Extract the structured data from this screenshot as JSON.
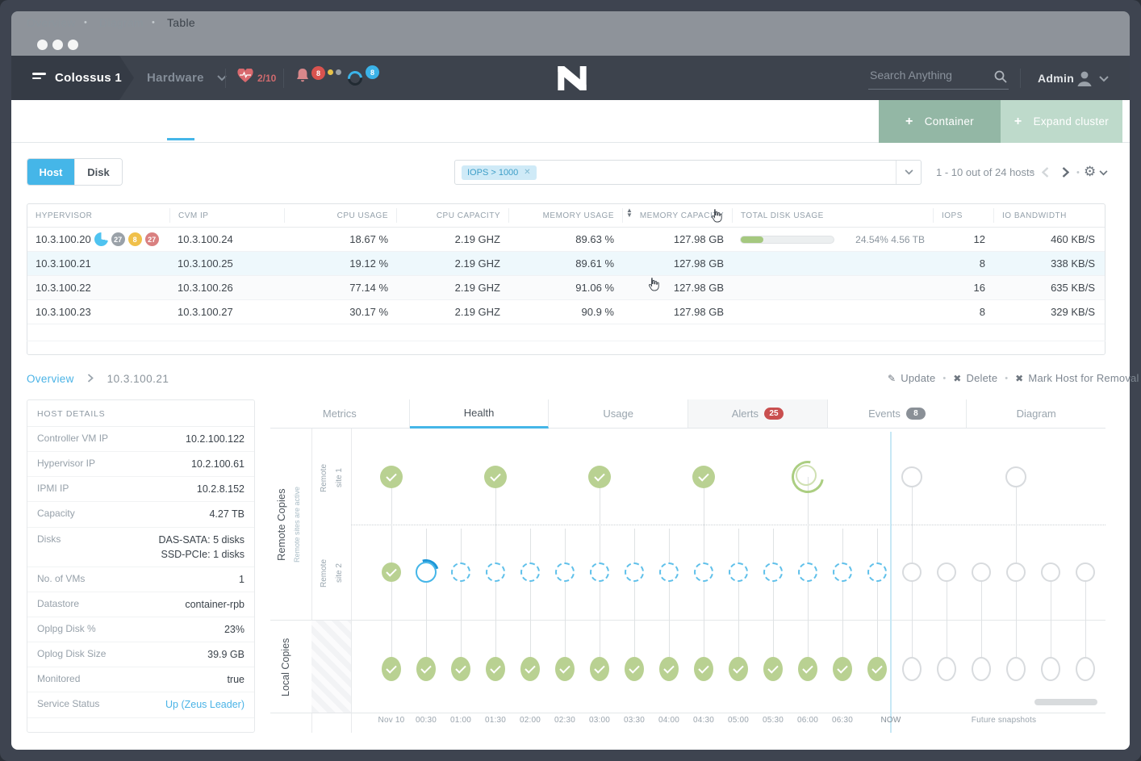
{
  "header": {
    "cluster_name": "Colossus 1",
    "nav_menu": "Hardware",
    "health_score": "2/10",
    "alerts_badge": "8",
    "tasks_badge": "8",
    "search_placeholder": "Search Anything",
    "user_name": "Admin"
  },
  "page_tabs": {
    "overview": "Overview",
    "diagram": "Diagram",
    "table": "Table"
  },
  "actions": {
    "container_label": "Container",
    "expand_cluster_label": "Expand cluster"
  },
  "toolbar": {
    "toggle_host": "Host",
    "toggle_disk": "Disk",
    "filter_chip": "IOPS > 1000",
    "pagination": "1 - 10 out of 24 hosts"
  },
  "table": {
    "columns": [
      "HYPERVISOR",
      "CVM IP",
      "CPU USAGE",
      "CPU CAPACITY",
      "MEMORY USAGE",
      "MEMORY CAPACITY",
      "TOTAL DISK USAGE",
      "IOPS",
      "IO BANDWIDTH"
    ],
    "rows": [
      {
        "hypervisor": "10.3.100.20",
        "badges": [
          {
            "type": "pie",
            "color": "#4fc3f0"
          },
          {
            "text": "27",
            "color": "#9aa1a8"
          },
          {
            "text": "8",
            "color": "#f0c04a"
          },
          {
            "text": "27",
            "color": "#d98080"
          }
        ],
        "cvm_ip": "10.3.100.24",
        "cpu_usage": "18.67 %",
        "cpu_capacity": "2.19 GHZ",
        "memory_usage": "89.63 %",
        "memory_capacity": "127.98 GB",
        "disk_usage_percent": 24.54,
        "disk_usage_label": "24.54% 4.56 TB",
        "iops": "12",
        "io_bandwidth": "460 KB/S",
        "state": null
      },
      {
        "hypervisor": "10.3.100.21",
        "badges": [],
        "cvm_ip": "10.3.100.25",
        "cpu_usage": "19.12 %",
        "cpu_capacity": "2.19 GHZ",
        "memory_usage": "89.61 %",
        "memory_capacity": "127.98 GB",
        "disk_usage_percent": null,
        "disk_usage_label": "",
        "iops": "8",
        "io_bandwidth": "338 KB/S",
        "state": "selected"
      },
      {
        "hypervisor": "10.3.100.22",
        "badges": [],
        "cvm_ip": "10.3.100.26",
        "cpu_usage": "77.14 %",
        "cpu_capacity": "2.19 GHZ",
        "memory_usage": "91.06 %",
        "memory_capacity": "127.98 GB",
        "disk_usage_percent": null,
        "disk_usage_label": "",
        "iops": "16",
        "io_bandwidth": "635 KB/S",
        "state": "shaded"
      },
      {
        "hypervisor": "10.3.100.23",
        "badges": [],
        "cvm_ip": "10.3.100.27",
        "cpu_usage": "30.17 %",
        "cpu_capacity": "2.19 GHZ",
        "memory_usage": "90.9 %",
        "memory_capacity": "127.98 GB",
        "disk_usage_percent": null,
        "disk_usage_label": "",
        "iops": "8",
        "io_bandwidth": "329 KB/S",
        "state": null
      }
    ]
  },
  "detail": {
    "breadcrumb": {
      "parent": "Overview",
      "current": "10.3.100.21"
    },
    "action_update": "Update",
    "action_delete": "Delete",
    "action_remove": "Mark Host for Removal",
    "host_details": {
      "title": "HOST DETAILS",
      "rows": [
        {
          "label": "Controller VM IP",
          "value": "10.2.100.122"
        },
        {
          "label": "Hypervisor IP",
          "value": "10.2.100.61"
        },
        {
          "label": "IPMI IP",
          "value": "10.2.8.152"
        },
        {
          "label": "Capacity",
          "value": "4.27 TB"
        },
        {
          "label": "Disks",
          "value": "DAS-SATA: 5 disks\nSSD-PCIe: 1 disks"
        },
        {
          "label": "No. of VMs",
          "value": "1"
        },
        {
          "label": "Datastore",
          "value": "container-rpb"
        },
        {
          "label": "Oplpg Disk %",
          "value": "23%"
        },
        {
          "label": "Oplog Disk Size",
          "value": "39.9 GB"
        },
        {
          "label": "Monitored",
          "value": "true"
        },
        {
          "label": "Service Status",
          "value": "Up (Zeus Leader)",
          "link": true
        }
      ]
    },
    "tabs": [
      {
        "label": "Metrics"
      },
      {
        "label": "Health",
        "active": true
      },
      {
        "label": "Usage"
      },
      {
        "label": "Alerts",
        "badge": "25",
        "badge_color": "#c94f4f",
        "highlight": true
      },
      {
        "label": "Events",
        "badge": "8",
        "badge_color": "#8a9097"
      },
      {
        "label": "Diagram"
      }
    ]
  },
  "timeline": {
    "labels": {
      "remote_section": "Remote Copies",
      "remote_sub": "Remote sites are active",
      "site1": "Remote\nsite 1",
      "site2": "Remote\nsite 2",
      "local_section": "Local Copies",
      "now": "NOW",
      "future": "Future snapshots"
    },
    "tick_labels": [
      "Nov 10",
      "00:30",
      "01:00",
      "01:30",
      "02:00",
      "02:30",
      "03:00",
      "03:30",
      "04:00",
      "04:30",
      "05:00",
      "05:30",
      "06:00",
      "06:30"
    ],
    "rows": {
      "site1": [
        "done",
        null,
        null,
        "done",
        null,
        null,
        "done",
        null,
        null,
        "done",
        null,
        null,
        "loading",
        null,
        null,
        "future",
        null,
        null,
        "future",
        null,
        null
      ],
      "site2": [
        "done",
        "progress",
        "scheduled",
        "scheduled",
        "scheduled",
        "scheduled",
        "scheduled",
        "scheduled",
        "scheduled",
        "scheduled",
        "scheduled",
        "scheduled",
        "scheduled",
        "scheduled",
        "scheduled",
        "future",
        "future",
        "future",
        "future",
        "future",
        "future"
      ],
      "local": [
        "done",
        "done",
        "done",
        "done",
        "done",
        "done",
        "done",
        "done",
        "done",
        "done",
        "done",
        "done",
        "done",
        "done",
        "done",
        "future",
        "future",
        "future",
        "future",
        "future",
        "future"
      ]
    },
    "colors": {
      "done": "#b9d192",
      "scheduled": "#5fc0ea",
      "progress": "#45b6e8",
      "future": "#d8dbde",
      "accent": "#45b6e8"
    }
  }
}
